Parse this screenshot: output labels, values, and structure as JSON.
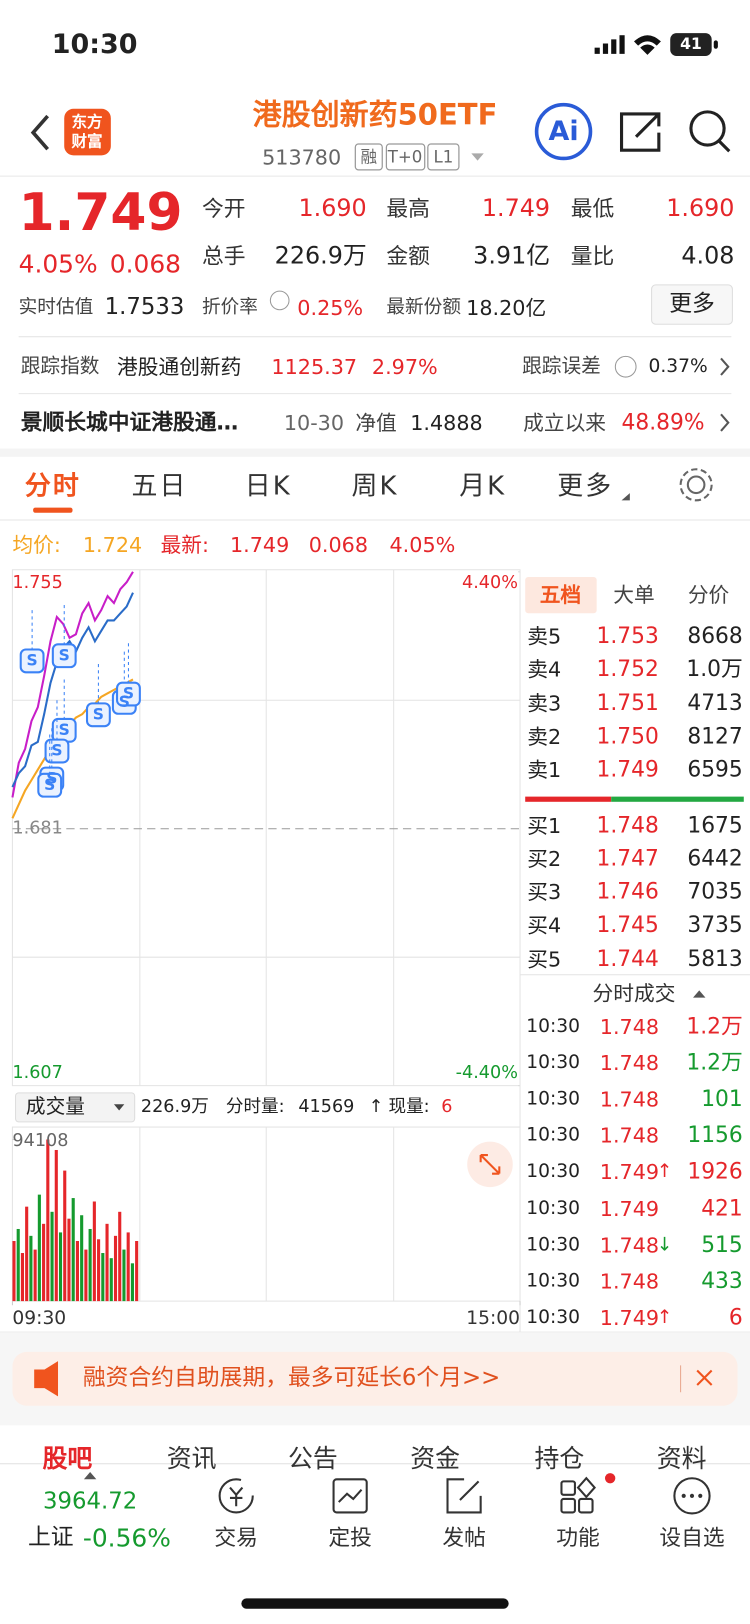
{
  "status": {
    "time": "10:30",
    "battery": "41"
  },
  "header": {
    "logo": [
      "东方",
      "财富"
    ],
    "title": "港股创新药50ETF",
    "code": "513780",
    "tags": [
      "融",
      "T+0",
      "L1"
    ],
    "ai": "Ai"
  },
  "quote": {
    "price": "1.749",
    "change_pct": "4.05%",
    "change": "0.068",
    "stats": [
      {
        "label": "今开",
        "value": "1.690"
      },
      {
        "label": "最高",
        "value": "1.749"
      },
      {
        "label": "最低",
        "value": "1.690"
      },
      {
        "label": "总手",
        "value": "226.9万"
      },
      {
        "label": "金额",
        "value": "3.91亿"
      },
      {
        "label": "量比",
        "value": "4.08"
      }
    ],
    "estimate": {
      "label": "实时估值",
      "value": "1.7533"
    },
    "discount": {
      "label": "折价率",
      "value": "0.25%"
    },
    "shares": {
      "label": "最新份额",
      "value": "18.20亿"
    },
    "more": "更多"
  },
  "tracking": {
    "label": "跟踪指数",
    "index": "港股通创新药",
    "value": "1125.37",
    "change": "2.97%",
    "error_label": "跟踪误差",
    "error": "0.37%"
  },
  "fund": {
    "name": "景顺长城中证港股通…",
    "date": "10-30",
    "nav_label": "净值",
    "nav": "1.4888",
    "since_label": "成立以来",
    "since": "48.89%"
  },
  "tabs": [
    "分时",
    "五日",
    "日K",
    "周K",
    "月K",
    "更多"
  ],
  "summary": {
    "avg_label": "均价:",
    "avg": "1.724",
    "last_label": "最新:",
    "last": "1.749",
    "change": "0.068",
    "change_pct": "4.05%"
  },
  "price_chart": {
    "type": "line",
    "xlim": [
      0,
      240
    ],
    "ylim": [
      1.607,
      1.755
    ],
    "yticks": [
      1.607,
      1.681,
      1.755
    ],
    "y2lim": [
      -4.4,
      4.4
    ],
    "y2ticks": [
      {
        "value": -4.4,
        "label": "-4.40%"
      },
      {
        "value": 4.4,
        "label": "4.40%"
      }
    ],
    "x": [
      0,
      3,
      6,
      9,
      12,
      15,
      18,
      21,
      24,
      27,
      30,
      33,
      36,
      39,
      42,
      45,
      48,
      51,
      54,
      57
    ],
    "series": [
      {
        "color": "#c81ec8",
        "values": [
          1.69,
          1.7,
          1.704,
          1.712,
          1.716,
          1.725,
          1.735,
          1.742,
          1.74,
          1.736,
          1.737,
          1.743,
          1.746,
          1.741,
          1.744,
          1.748,
          1.746,
          1.75,
          1.752,
          1.755
        ]
      },
      {
        "color": "#2a6cc8",
        "values": [
          1.693,
          1.697,
          1.699,
          1.705,
          1.706,
          1.714,
          1.723,
          1.729,
          1.733,
          1.735,
          1.732,
          1.736,
          1.739,
          1.735,
          1.738,
          1.741,
          1.741,
          1.743,
          1.745,
          1.749
        ]
      },
      {
        "color": "#f5a623",
        "values": [
          1.684,
          1.688,
          1.692,
          1.695,
          1.698,
          1.701,
          1.704,
          1.707,
          1.709,
          1.711,
          1.713,
          1.714,
          1.716,
          1.717,
          1.719,
          1.72,
          1.721,
          1.722,
          1.723,
          1.724
        ]
      }
    ],
    "signal_label": "S"
  },
  "volume_chart": {
    "type": "bar",
    "selector": "成交量",
    "total": "226.9万",
    "minute_label": "分时量:",
    "minute": "41569",
    "arrow": "↑",
    "current_label": "现量:",
    "current": "6",
    "xlim": [
      0,
      240
    ],
    "ylim": [
      0,
      94108
    ],
    "yticks": [
      94108
    ],
    "xticks": [
      {
        "value": 0,
        "label": "09:30"
      },
      {
        "value": 240,
        "label": "15:00"
      }
    ],
    "x": [
      0,
      2,
      4,
      6,
      8,
      10,
      12,
      14,
      16,
      18,
      20,
      22,
      24,
      26,
      28,
      30,
      32,
      34,
      36,
      38,
      40,
      42,
      44,
      46,
      48,
      50,
      52,
      54,
      56,
      58
    ],
    "values": [
      35000,
      42000,
      28000,
      55000,
      38000,
      30000,
      62000,
      45000,
      94108,
      52000,
      88000,
      40000,
      76000,
      48000,
      60000,
      35000,
      50000,
      30000,
      42000,
      58000,
      36000,
      28000,
      45000,
      25000,
      38000,
      52000,
      30000,
      40000,
      22000,
      35000
    ],
    "colors": [
      "#e5262a",
      "#159a2e",
      "#e5262a",
      "#e5262a",
      "#159a2e",
      "#e5262a",
      "#159a2e",
      "#e5262a",
      "#e5262a",
      "#159a2e",
      "#e5262a",
      "#159a2e",
      "#e5262a",
      "#e5262a",
      "#159a2e",
      "#e5262a",
      "#159a2e",
      "#e5262a",
      "#159a2e",
      "#e5262a",
      "#e5262a",
      "#159a2e",
      "#e5262a",
      "#159a2e",
      "#e5262a",
      "#e5262a",
      "#159a2e",
      "#e5262a",
      "#159a2e",
      "#e5262a"
    ]
  },
  "order_book": {
    "tabs": [
      "五档",
      "大单",
      "分价"
    ],
    "asks": [
      {
        "label": "卖5",
        "price": "1.753",
        "volume": "8668"
      },
      {
        "label": "卖4",
        "price": "1.752",
        "volume": "1.0万"
      },
      {
        "label": "卖3",
        "price": "1.751",
        "volume": "4713"
      },
      {
        "label": "卖2",
        "price": "1.750",
        "volume": "8127"
      },
      {
        "label": "卖1",
        "price": "1.749",
        "volume": "6595"
      }
    ],
    "bids": [
      {
        "label": "买1",
        "price": "1.748",
        "volume": "1675"
      },
      {
        "label": "买2",
        "price": "1.747",
        "volume": "6442"
      },
      {
        "label": "买3",
        "price": "1.746",
        "volume": "7035"
      },
      {
        "label": "买4",
        "price": "1.745",
        "volume": "3735"
      },
      {
        "label": "买5",
        "price": "1.744",
        "volume": "5813"
      }
    ]
  },
  "trades": {
    "title": "分时成交",
    "rows": [
      {
        "time": "10:30",
        "price": "1.748",
        "volume": "1.2万",
        "color": "#e5262a"
      },
      {
        "time": "10:30",
        "price": "1.748",
        "volume": "1.2万",
        "color": "#159a2e"
      },
      {
        "time": "10:30",
        "price": "1.748",
        "volume": "101",
        "color": "#159a2e"
      },
      {
        "time": "10:30",
        "price": "1.748",
        "volume": "1156",
        "color": "#159a2e"
      },
      {
        "time": "10:30",
        "price": "1.749",
        "flag": "↑",
        "volume": "1926",
        "color": "#e5262a"
      },
      {
        "time": "10:30",
        "price": "1.749",
        "volume": "421",
        "color": "#e5262a"
      },
      {
        "time": "10:30",
        "price": "1.748",
        "flag": "↓",
        "volume": "515",
        "color": "#159a2e"
      },
      {
        "time": "10:30",
        "price": "1.748",
        "volume": "433",
        "color": "#159a2e"
      },
      {
        "time": "10:30",
        "price": "1.749",
        "flag": "↑",
        "volume": "6",
        "color": "#e5262a"
      }
    ]
  },
  "banner": "融资合约自助展期，最多可延长6个月>>",
  "sections": [
    "股吧",
    "资讯",
    "公告",
    "资金",
    "持仓",
    "资料"
  ],
  "bottom": {
    "index_value": "3964.72",
    "index_name": "上证",
    "index_change": "-0.56%",
    "items": [
      "交易",
      "定投",
      "发帖",
      "功能",
      "设自选"
    ]
  }
}
